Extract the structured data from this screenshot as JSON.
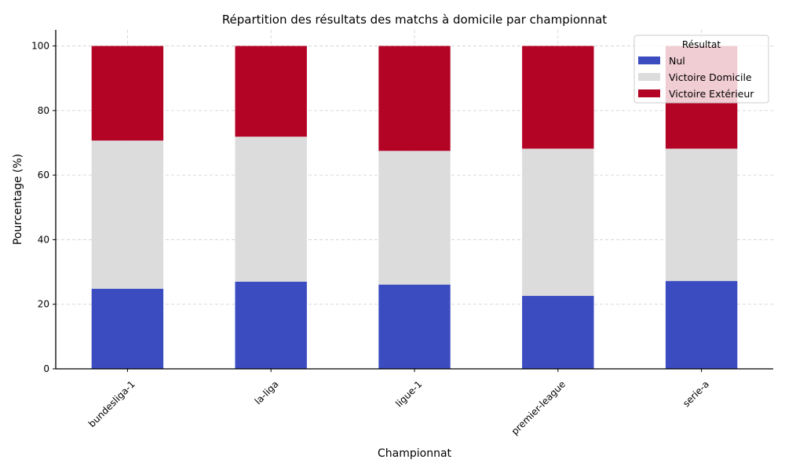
{
  "chart_data": {
    "type": "bar",
    "stacked": true,
    "title": "Répartition des résultats des matchs à domicile par championnat",
    "xlabel": "Championnat",
    "ylabel": "Pourcentage (%)",
    "ylim": [
      0,
      105
    ],
    "yticks": [
      0,
      20,
      40,
      60,
      80,
      100
    ],
    "categories": [
      "bundesliga-1",
      "la-liga",
      "ligue-1",
      "premier-league",
      "serie-a"
    ],
    "series": [
      {
        "name": "Nul",
        "color": "#3b4cc0",
        "values": [
          24.8,
          27.0,
          26.1,
          22.6,
          27.2
        ]
      },
      {
        "name": "Victoire Domicile",
        "color": "#dcdcdc",
        "values": [
          45.9,
          44.9,
          41.4,
          45.6,
          41.0
        ]
      },
      {
        "name": "Victoire Extérieur",
        "color": "#b40426",
        "values": [
          29.3,
          28.1,
          32.5,
          31.8,
          31.8
        ]
      }
    ],
    "legend": {
      "title": "Résultat",
      "position": "top-right"
    },
    "grid": true
  }
}
